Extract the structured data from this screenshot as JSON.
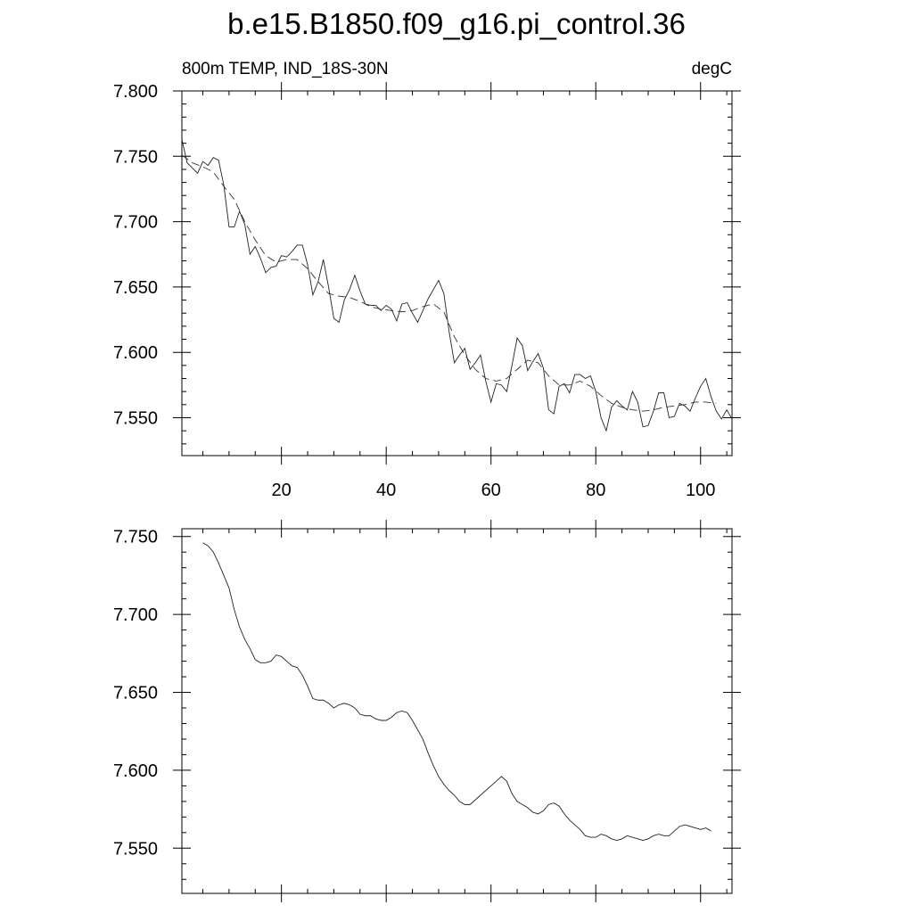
{
  "title": "b.e15.B1850.f09_g16.pi_control.36",
  "chart_data": [
    {
      "type": "line",
      "left_label": "800m TEMP, IND_18S-30N",
      "right_label": "degC",
      "xlim": [
        1,
        106
      ],
      "ylim": [
        7.521,
        7.8
      ],
      "x_ticks": [
        20,
        40,
        60,
        80,
        100
      ],
      "x_tick_labels": [
        "20",
        "40",
        "60",
        "80",
        "100"
      ],
      "y_ticks": [
        7.8,
        7.75,
        7.7,
        7.65,
        7.6,
        7.55
      ],
      "y_tick_labels": [
        "7.800",
        "7.750",
        "7.700",
        "7.650",
        "7.600",
        "7.550"
      ],
      "grid": false,
      "series": [
        {
          "style": "solid",
          "x": [
            1,
            2,
            3,
            4,
            5,
            6,
            7,
            8,
            9,
            10,
            11,
            12,
            13,
            14,
            15,
            16,
            17,
            18,
            19,
            20,
            21,
            22,
            23,
            24,
            25,
            26,
            27,
            28,
            29,
            30,
            31,
            32,
            33,
            34,
            35,
            36,
            37,
            38,
            39,
            40,
            41,
            42,
            43,
            44,
            45,
            46,
            47,
            48,
            49,
            50,
            51,
            52,
            53,
            54,
            55,
            56,
            57,
            58,
            59,
            60,
            61,
            62,
            63,
            64,
            65,
            66,
            67,
            68,
            69,
            70,
            71,
            72,
            73,
            74,
            75,
            76,
            77,
            78,
            79,
            80,
            81,
            82,
            83,
            84,
            85,
            86,
            87,
            88,
            89,
            90,
            91,
            92,
            93,
            94,
            95,
            96,
            97,
            98,
            99,
            100,
            101,
            102,
            103,
            104,
            105,
            106
          ],
          "values": [
            7.763,
            7.745,
            7.741,
            7.737,
            7.746,
            7.743,
            7.749,
            7.747,
            7.728,
            7.696,
            7.696,
            7.708,
            7.698,
            7.675,
            7.681,
            7.672,
            7.661,
            7.665,
            7.666,
            7.674,
            7.673,
            7.677,
            7.682,
            7.682,
            7.667,
            7.644,
            7.654,
            7.671,
            7.65,
            7.626,
            7.623,
            7.64,
            7.648,
            7.659,
            7.647,
            7.637,
            7.636,
            7.636,
            7.632,
            7.636,
            7.633,
            7.624,
            7.637,
            7.638,
            7.63,
            7.623,
            7.632,
            7.641,
            7.648,
            7.655,
            7.645,
            7.616,
            7.592,
            7.598,
            7.603,
            7.587,
            7.592,
            7.598,
            7.578,
            7.562,
            7.576,
            7.575,
            7.57,
            7.59,
            7.611,
            7.605,
            7.586,
            7.593,
            7.599,
            7.588,
            7.556,
            7.553,
            7.574,
            7.576,
            7.569,
            7.583,
            7.583,
            7.58,
            7.582,
            7.57,
            7.55,
            7.54,
            7.558,
            7.563,
            7.559,
            7.556,
            7.57,
            7.562,
            7.543,
            7.544,
            7.555,
            7.569,
            7.569,
            7.55,
            7.551,
            7.561,
            7.559,
            7.555,
            7.565,
            7.574,
            7.58,
            7.566,
            7.555,
            7.549,
            7.556,
            7.549
          ]
        },
        {
          "style": "dashed",
          "x": [
            1,
            3,
            5,
            7,
            9,
            11,
            13,
            15,
            17,
            19,
            21,
            23,
            25,
            27,
            29,
            31,
            33,
            35,
            37,
            39,
            41,
            43,
            45,
            47,
            49,
            51,
            53,
            55,
            57,
            59,
            61,
            63,
            65,
            67,
            69,
            71,
            73,
            75,
            77,
            79,
            81,
            83,
            85,
            87,
            89,
            91,
            93,
            95,
            97,
            99,
            101,
            103
          ],
          "values": [
            7.751,
            7.745,
            7.742,
            7.738,
            7.727,
            7.717,
            7.7,
            7.686,
            7.674,
            7.669,
            7.671,
            7.671,
            7.664,
            7.654,
            7.645,
            7.643,
            7.642,
            7.639,
            7.635,
            7.633,
            7.632,
            7.631,
            7.632,
            7.635,
            7.637,
            7.631,
            7.612,
            7.598,
            7.587,
            7.58,
            7.578,
            7.58,
            7.587,
            7.594,
            7.592,
            7.582,
            7.575,
            7.575,
            7.578,
            7.574,
            7.567,
            7.561,
            7.558,
            7.556,
            7.555,
            7.556,
            7.558,
            7.559,
            7.56,
            7.562,
            7.562,
            7.561
          ]
        }
      ]
    },
    {
      "type": "line",
      "xlim": [
        1,
        106
      ],
      "ylim": [
        7.521,
        7.755
      ],
      "x_ticks": [
        20,
        40,
        60,
        80,
        100
      ],
      "y_ticks": [
        7.75,
        7.7,
        7.65,
        7.6,
        7.55
      ],
      "y_tick_labels": [
        "7.750",
        "7.700",
        "7.650",
        "7.600",
        "7.550"
      ],
      "grid": false,
      "series": [
        {
          "style": "solid",
          "x": [
            5,
            6,
            7,
            8,
            9,
            10,
            11,
            12,
            13,
            14,
            15,
            16,
            17,
            18,
            19,
            20,
            21,
            22,
            23,
            24,
            25,
            26,
            27,
            28,
            29,
            30,
            31,
            32,
            33,
            34,
            35,
            36,
            37,
            38,
            39,
            40,
            41,
            42,
            43,
            44,
            45,
            46,
            47,
            48,
            49,
            50,
            51,
            52,
            53,
            54,
            55,
            56,
            57,
            58,
            59,
            60,
            61,
            62,
            63,
            64,
            65,
            66,
            67,
            68,
            69,
            70,
            71,
            72,
            73,
            74,
            75,
            76,
            77,
            78,
            79,
            80,
            81,
            82,
            83,
            84,
            85,
            86,
            87,
            88,
            89,
            90,
            91,
            92,
            93,
            94,
            95,
            96,
            97,
            98,
            99,
            100,
            101,
            102
          ],
          "values": [
            7.746,
            7.744,
            7.74,
            7.733,
            7.725,
            7.717,
            7.703,
            7.692,
            7.684,
            7.678,
            7.671,
            7.669,
            7.669,
            7.67,
            7.674,
            7.673,
            7.67,
            7.667,
            7.666,
            7.661,
            7.654,
            7.646,
            7.645,
            7.645,
            7.643,
            7.64,
            7.642,
            7.643,
            7.642,
            7.64,
            7.636,
            7.635,
            7.635,
            7.633,
            7.632,
            7.632,
            7.634,
            7.637,
            7.638,
            7.637,
            7.632,
            7.626,
            7.62,
            7.611,
            7.603,
            7.596,
            7.591,
            7.587,
            7.584,
            7.58,
            7.578,
            7.578,
            7.581,
            7.584,
            7.587,
            7.59,
            7.593,
            7.596,
            7.593,
            7.585,
            7.58,
            7.578,
            7.576,
            7.573,
            7.572,
            7.574,
            7.578,
            7.579,
            7.577,
            7.572,
            7.568,
            7.565,
            7.562,
            7.558,
            7.557,
            7.557,
            7.559,
            7.558,
            7.556,
            7.555,
            7.556,
            7.558,
            7.557,
            7.556,
            7.555,
            7.556,
            7.558,
            7.559,
            7.558,
            7.558,
            7.561,
            7.564,
            7.565,
            7.564,
            7.563,
            7.562,
            7.563,
            7.561
          ]
        }
      ]
    }
  ]
}
